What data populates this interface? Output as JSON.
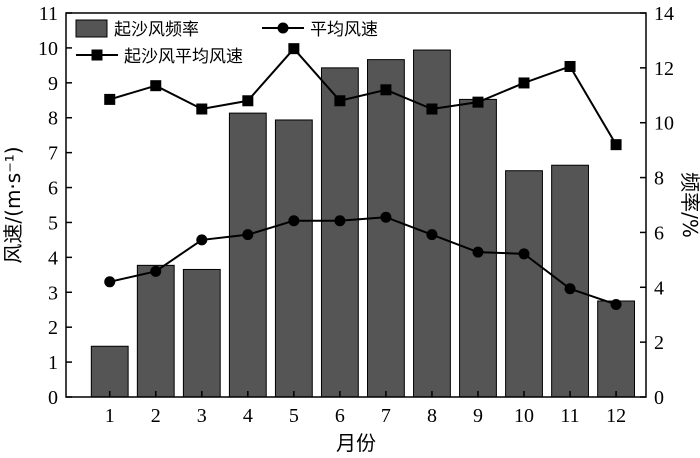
{
  "chart_data": {
    "type": "bar+line",
    "title": "",
    "categories": [
      "1",
      "2",
      "3",
      "4",
      "5",
      "6",
      "7",
      "8",
      "9",
      "10",
      "11",
      "12"
    ],
    "xlabel": "月份",
    "ylabel_left": "风速/(m·s⁻¹)",
    "ylabel_right": "频率/%",
    "ylim_left": [
      0,
      11
    ],
    "ylim_right": [
      0,
      14
    ],
    "yticks_left": [
      "0",
      "1",
      "2",
      "3",
      "4",
      "5",
      "6",
      "7",
      "8",
      "9",
      "10",
      "11"
    ],
    "yticks_right": [
      "0",
      "2",
      "4",
      "6",
      "8",
      "10",
      "12",
      "14"
    ],
    "grid": false,
    "legend": {
      "placement": "top-left",
      "entries": [
        "起沙风频率",
        "平均风速",
        "起沙风平均风速"
      ]
    },
    "series": [
      {
        "name": "起沙风频率",
        "type": "bar",
        "axis": "right",
        "color": "#555555",
        "values": [
          1.85,
          4.8,
          4.65,
          10.35,
          10.1,
          12.0,
          12.3,
          12.65,
          10.85,
          8.25,
          8.45,
          3.5
        ]
      },
      {
        "name": "平均风速",
        "type": "line",
        "axis": "left",
        "marker": "circle",
        "values": [
          3.3,
          3.6,
          4.5,
          4.65,
          5.05,
          5.05,
          5.15,
          4.65,
          4.15,
          4.1,
          3.1,
          2.65
        ]
      },
      {
        "name": "起沙风平均风速",
        "type": "line",
        "axis": "right",
        "marker": "square",
        "values": [
          10.85,
          11.35,
          10.5,
          10.8,
          12.7,
          10.8,
          11.2,
          10.5,
          10.75,
          11.45,
          12.05,
          9.2
        ]
      }
    ]
  }
}
